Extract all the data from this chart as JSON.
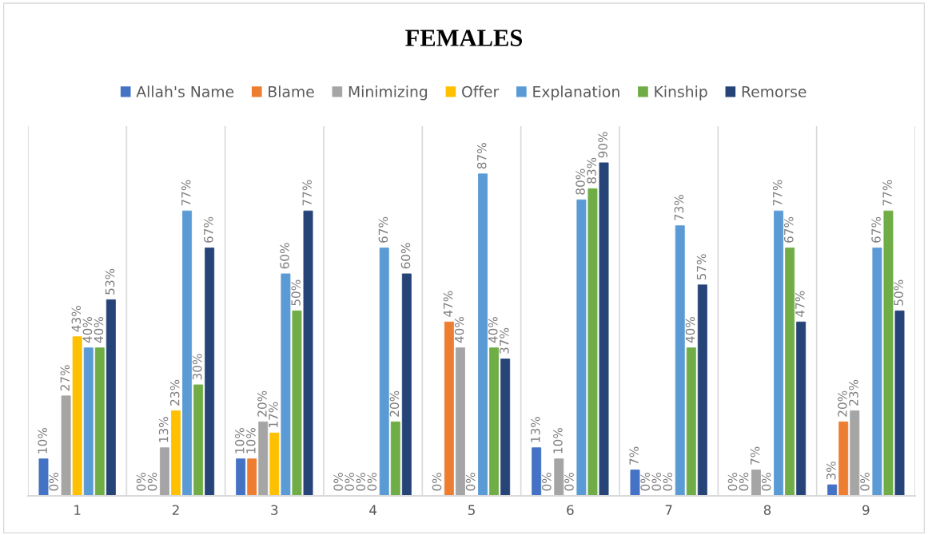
{
  "chart_data": {
    "type": "bar",
    "title": "FEMALES",
    "categories": [
      "1",
      "2",
      "3",
      "4",
      "5",
      "6",
      "7",
      "8",
      "9"
    ],
    "series": [
      {
        "name": "Allah's Name",
        "color": "#4472c4",
        "values": [
          10,
          0,
          10,
          0,
          0,
          13,
          7,
          0,
          3
        ],
        "value_labels": [
          "10%",
          "0%",
          "10%",
          "0%",
          "0%",
          "13%",
          "7%",
          "0%",
          "3%"
        ]
      },
      {
        "name": "Blame",
        "color": "#ed7d31",
        "values": [
          0,
          0,
          10,
          0,
          47,
          0,
          0,
          0,
          20
        ],
        "value_labels": [
          "0%",
          "0%",
          "10%",
          "0%",
          "47%",
          "0%",
          "0%",
          "0%",
          "20%"
        ]
      },
      {
        "name": "Minimizing",
        "color": "#a5a5a5",
        "values": [
          27,
          13,
          20,
          0,
          40,
          10,
          0,
          7,
          23
        ],
        "value_labels": [
          "27%",
          "13%",
          "20%",
          "0%",
          "40%",
          "10%",
          "0%",
          "7%",
          "23%"
        ]
      },
      {
        "name": "Offer",
        "color": "#ffc000",
        "values": [
          43,
          23,
          17,
          0,
          0,
          0,
          0,
          0,
          0
        ],
        "value_labels": [
          "43%",
          "23%",
          "17%",
          "0%",
          "0%",
          "0%",
          "0%",
          "0%",
          "0%"
        ]
      },
      {
        "name": "Explanation",
        "color": "#5b9bd5",
        "values": [
          40,
          77,
          60,
          67,
          87,
          80,
          73,
          77,
          67
        ],
        "value_labels": [
          "40%",
          "77%",
          "60%",
          "67%",
          "87%",
          "80%",
          "73%",
          "77%",
          "67%"
        ]
      },
      {
        "name": "Kinship",
        "color": "#70ad47",
        "values": [
          40,
          30,
          50,
          20,
          40,
          83,
          40,
          67,
          77
        ],
        "value_labels": [
          "40%",
          "30%",
          "50%",
          "20%",
          "40%",
          "83%",
          "40%",
          "67%",
          "77%"
        ]
      },
      {
        "name": "Remorse",
        "color": "#264478",
        "values": [
          53,
          67,
          77,
          60,
          37,
          90,
          57,
          47,
          50
        ],
        "value_labels": [
          "53%",
          "67%",
          "77%",
          "60%",
          "37%",
          "90%",
          "57%",
          "47%",
          "50%"
        ]
      }
    ],
    "grid": "x",
    "legend": "top",
    "tick_labels": "x"
  }
}
